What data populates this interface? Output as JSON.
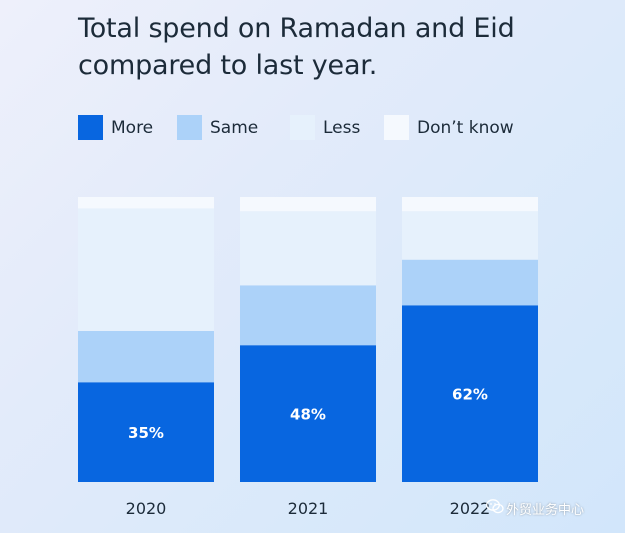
{
  "chart_data": {
    "type": "bar",
    "stacked": true,
    "percent_stacked": true,
    "title": [
      "Total spend on Ramadan and Eid",
      "compared to last year."
    ],
    "categories": [
      "2020",
      "2021",
      "2022"
    ],
    "series": [
      {
        "name": "More",
        "values": [
          35,
          48,
          62
        ],
        "color": "#0866e0",
        "data_labels": [
          "35%",
          "48%",
          "62%"
        ]
      },
      {
        "name": "Same",
        "values": [
          18,
          21,
          16
        ],
        "color": "#acd2f9"
      },
      {
        "name": "Less",
        "values": [
          43,
          26,
          17
        ],
        "color": "#e6f1fc"
      },
      {
        "name": "Don’t know",
        "values": [
          4,
          5,
          5
        ],
        "color": "#f5f9fe"
      }
    ],
    "ylim": [
      0,
      100
    ],
    "grid": false,
    "legend_position": "top"
  },
  "watermark": {
    "text": "外贸业务中心",
    "icon": "wechat-icon"
  }
}
